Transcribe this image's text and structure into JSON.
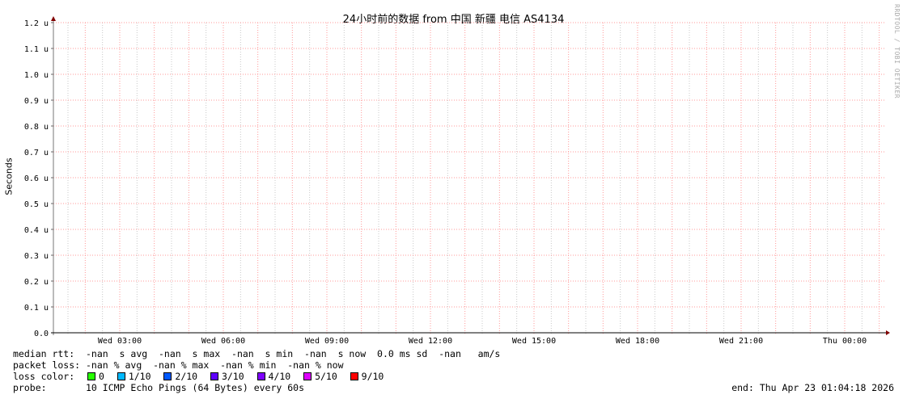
{
  "chart_data": {
    "type": "line",
    "title": "24小时前的数据 from 中国 新疆 电信 AS4134",
    "ylabel": "Seconds",
    "ylim": [
      0,
      1.2
    ],
    "y_ticks": [
      "0.0",
      "0.1 u",
      "0.2 u",
      "0.3 u",
      "0.4 u",
      "0.5 u",
      "0.6 u",
      "0.7 u",
      "0.8 u",
      "0.9 u",
      "1.0 u",
      "1.1 u",
      "1.2 u"
    ],
    "x_ticks": [
      "Wed 03:00",
      "Wed 06:00",
      "Wed 09:00",
      "Wed 12:00",
      "Wed 15:00",
      "Wed 18:00",
      "Wed 21:00",
      "Thu 00:00"
    ],
    "grid": true,
    "series": [],
    "colors": {
      "major_grid": "#ff9999",
      "minor_grid": "#c8c8c8",
      "axis_arrow": "#800000"
    }
  },
  "watermark": "RRDTOOL / TOBI OETIKER",
  "legend": {
    "median_rtt": "median rtt:  -nan  s avg  -nan  s max  -nan  s min  -nan  s now  0.0 ms sd  -nan   am/s",
    "packet_loss": "packet loss: -nan % avg  -nan % max  -nan % min  -nan % now",
    "loss_color_label": "loss color:",
    "loss_colors": [
      {
        "label": "0",
        "color": "#26ff00"
      },
      {
        "label": "1/10",
        "color": "#00b8ff"
      },
      {
        "label": "2/10",
        "color": "#0059ff"
      },
      {
        "label": "3/10",
        "color": "#5e00ff"
      },
      {
        "label": "4/10",
        "color": "#7e00ff"
      },
      {
        "label": "5/10",
        "color": "#dd00ff"
      },
      {
        "label": "9/10",
        "color": "#ff0000"
      }
    ],
    "probe": "probe:       10 ICMP Echo Pings (64 Bytes) every 60s",
    "end": "end: Thu Apr 23 01:04:18 2026"
  }
}
